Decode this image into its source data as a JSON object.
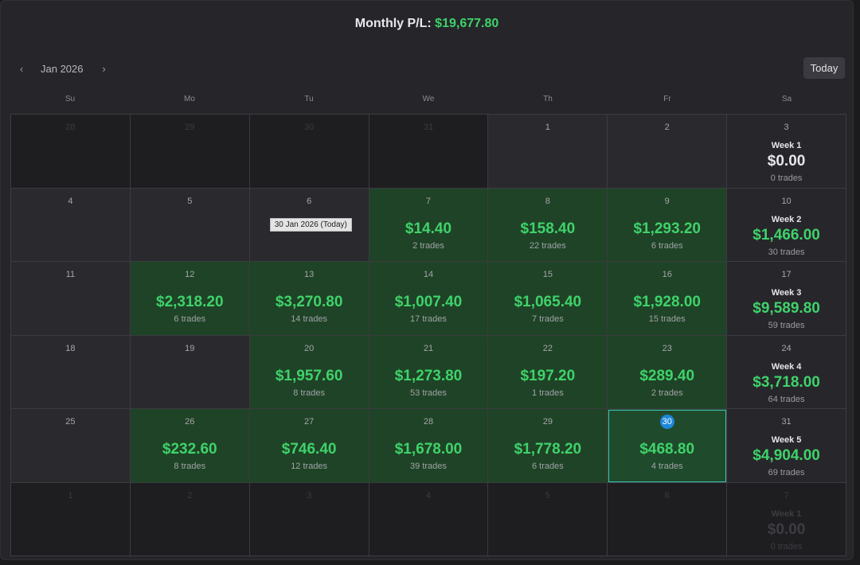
{
  "header": {
    "title_label": "Monthly P/L:",
    "title_value": "$19,677.80"
  },
  "nav": {
    "month": "Jan 2026",
    "today_label": "Today"
  },
  "weekdays": [
    "Su",
    "Mo",
    "Tu",
    "We",
    "Th",
    "Fr",
    "Sa"
  ],
  "tooltip": "30 Jan 2026 (Today)",
  "weeks": [
    {
      "days": [
        {
          "n": "28",
          "out": true
        },
        {
          "n": "29",
          "out": true
        },
        {
          "n": "30",
          "out": true
        },
        {
          "n": "31",
          "out": true
        },
        {
          "n": "1"
        },
        {
          "n": "2"
        },
        {
          "n": "3",
          "week": {
            "label": "Week 1",
            "pl": "$0.00",
            "trades": "0 trades",
            "zero": true
          }
        }
      ]
    },
    {
      "days": [
        {
          "n": "4"
        },
        {
          "n": "5"
        },
        {
          "n": "6",
          "tooltip": true
        },
        {
          "n": "7",
          "pl": "$14.40",
          "trades": "2 trades"
        },
        {
          "n": "8",
          "pl": "$158.40",
          "trades": "22 trades"
        },
        {
          "n": "9",
          "pl": "$1,293.20",
          "trades": "6 trades"
        },
        {
          "n": "10",
          "week": {
            "label": "Week 2",
            "pl": "$1,466.00",
            "trades": "30 trades"
          }
        }
      ]
    },
    {
      "days": [
        {
          "n": "11"
        },
        {
          "n": "12",
          "pl": "$2,318.20",
          "trades": "6 trades"
        },
        {
          "n": "13",
          "pl": "$3,270.80",
          "trades": "14 trades"
        },
        {
          "n": "14",
          "pl": "$1,007.40",
          "trades": "17 trades"
        },
        {
          "n": "15",
          "pl": "$1,065.40",
          "trades": "7 trades"
        },
        {
          "n": "16",
          "pl": "$1,928.00",
          "trades": "15 trades"
        },
        {
          "n": "17",
          "week": {
            "label": "Week 3",
            "pl": "$9,589.80",
            "trades": "59 trades"
          }
        }
      ]
    },
    {
      "days": [
        {
          "n": "18"
        },
        {
          "n": "19"
        },
        {
          "n": "20",
          "pl": "$1,957.60",
          "trades": "8 trades"
        },
        {
          "n": "21",
          "pl": "$1,273.80",
          "trades": "53 trades"
        },
        {
          "n": "22",
          "pl": "$197.20",
          "trades": "1 trades"
        },
        {
          "n": "23",
          "pl": "$289.40",
          "trades": "2 trades"
        },
        {
          "n": "24",
          "week": {
            "label": "Week 4",
            "pl": "$3,718.00",
            "trades": "64 trades"
          }
        }
      ]
    },
    {
      "days": [
        {
          "n": "25"
        },
        {
          "n": "26",
          "pl": "$232.60",
          "trades": "8 trades"
        },
        {
          "n": "27",
          "pl": "$746.40",
          "trades": "12 trades"
        },
        {
          "n": "28",
          "pl": "$1,678.00",
          "trades": "39 trades"
        },
        {
          "n": "29",
          "pl": "$1,778.20",
          "trades": "6 trades"
        },
        {
          "n": "30",
          "pl": "$468.80",
          "trades": "4 trades",
          "today": true
        },
        {
          "n": "31",
          "week": {
            "label": "Week 5",
            "pl": "$4,904.00",
            "trades": "69 trades"
          }
        }
      ]
    },
    {
      "days": [
        {
          "n": "1",
          "out": true
        },
        {
          "n": "2",
          "out": true
        },
        {
          "n": "3",
          "out": true
        },
        {
          "n": "4",
          "out": true
        },
        {
          "n": "5",
          "out": true
        },
        {
          "n": "6",
          "out": true
        },
        {
          "n": "7",
          "out": true,
          "week": {
            "label": "Week 1",
            "pl": "$0.00",
            "trades": "0 trades",
            "zero": true
          }
        }
      ]
    }
  ],
  "colors": {
    "profit": "#3fd26b",
    "profit_cell": "#1f4326",
    "today_badge": "#1e86d9",
    "today_border": "#3fc4b8"
  }
}
